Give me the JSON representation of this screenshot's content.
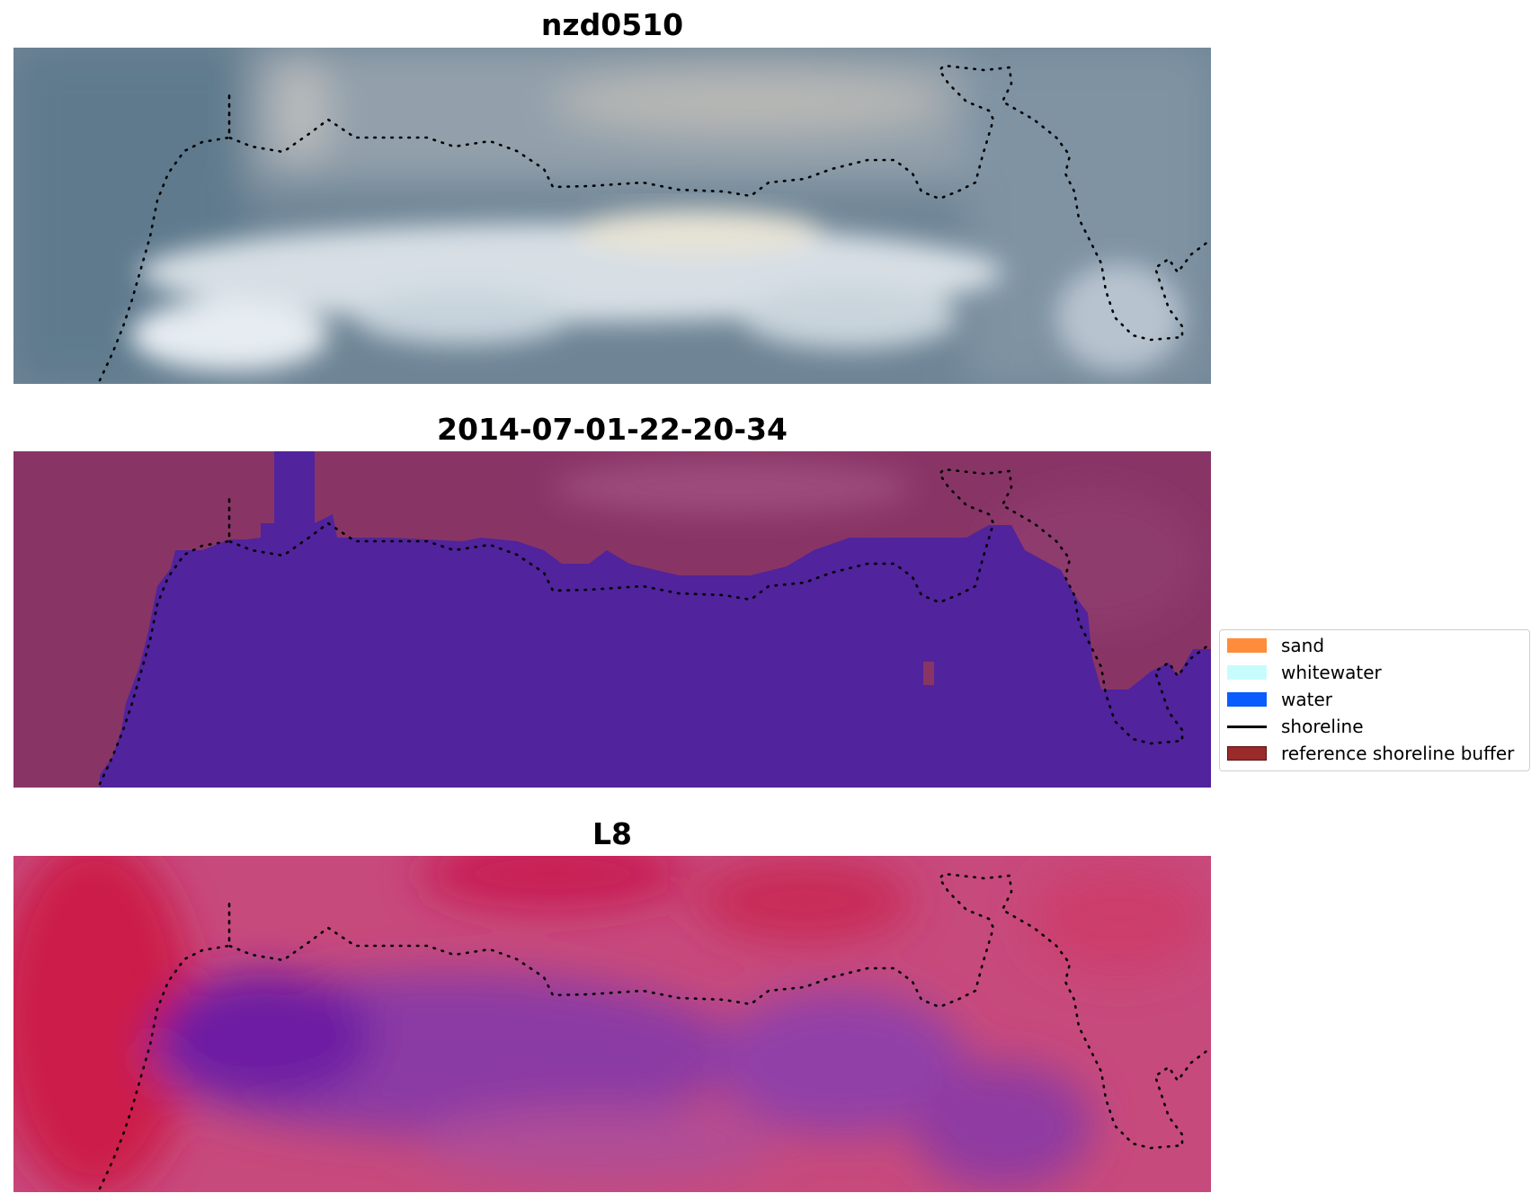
{
  "panels": [
    {
      "title": "nzd0510",
      "kind": "rgb"
    },
    {
      "title": "2014-07-01-22-20-34",
      "kind": "classified"
    },
    {
      "title": "L8",
      "kind": "index"
    }
  ],
  "legend": {
    "items": [
      {
        "label": "sand",
        "type": "patch",
        "color": "#ff8c3a"
      },
      {
        "label": "whitewater",
        "type": "patch",
        "color": "#c8fcfc"
      },
      {
        "label": "water",
        "type": "patch",
        "color": "#0a5cff"
      },
      {
        "label": "shoreline",
        "type": "line",
        "color": "#000000"
      },
      {
        "label": "reference shoreline buffer",
        "type": "patch",
        "color": "#9b2a2a"
      }
    ]
  },
  "colors": {
    "rgb_background": "#6f8596",
    "rgb_surf": "#d9e0e6",
    "classified_land": "#883566",
    "classified_water": "#51239c",
    "index_land": "#c52a5c",
    "index_water": "#8a3fa6"
  }
}
